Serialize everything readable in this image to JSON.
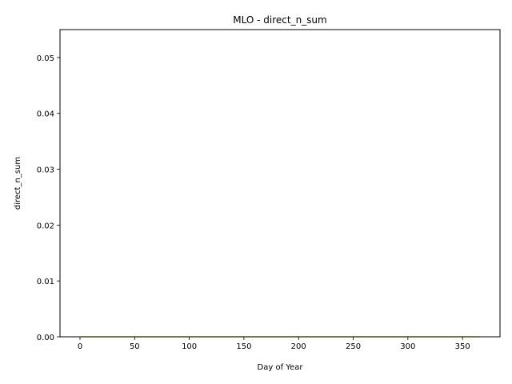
{
  "chart_data": {
    "type": "line",
    "title": "MLO - direct_n_sum",
    "xlabel": "Day of Year",
    "ylabel": "direct_n_sum",
    "xlim": [
      -18.3,
      384.3
    ],
    "ylim": [
      0,
      0.055
    ],
    "xticks": [
      0,
      50,
      100,
      150,
      200,
      250,
      300,
      350
    ],
    "xtick_labels": [
      "0",
      "50",
      "100",
      "150",
      "200",
      "250",
      "300",
      "350"
    ],
    "yticks": [
      0.0,
      0.01,
      0.02,
      0.03,
      0.04,
      0.05
    ],
    "ytick_labels": [
      "0.00",
      "0.01",
      "0.02",
      "0.03",
      "0.04",
      "0.05"
    ],
    "grid": false,
    "series": [
      {
        "color": "#d4e157",
        "x": [
          1,
          366
        ],
        "y": [
          0,
          0
        ]
      }
    ]
  }
}
